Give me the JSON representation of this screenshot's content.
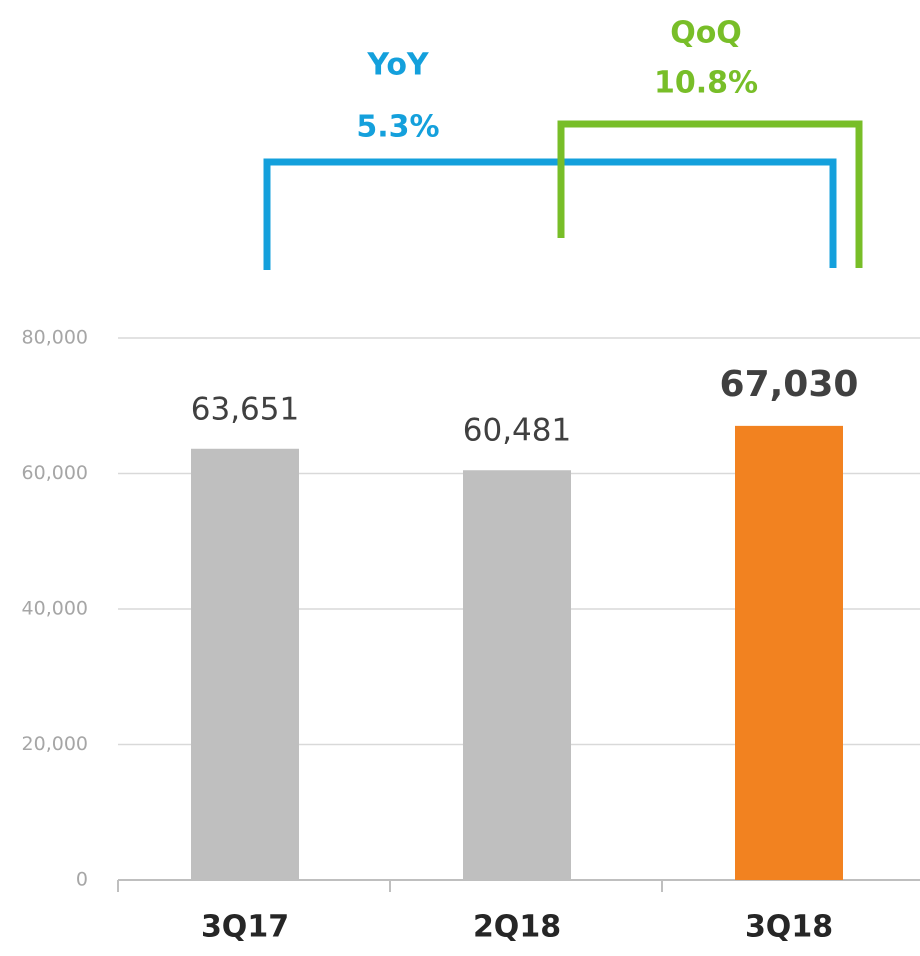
{
  "chart_data": {
    "type": "bar",
    "categories": [
      "3Q17",
      "2Q18",
      "3Q18"
    ],
    "values": [
      63651,
      60481,
      67030
    ],
    "value_labels": [
      "63,651",
      "60,481",
      "67,030"
    ],
    "colors": [
      "#bfbfbf",
      "#bfbfbf",
      "#f28220"
    ],
    "emphasized": [
      false,
      false,
      true
    ],
    "ylim": [
      0,
      80000
    ],
    "yticks": [
      0,
      {
        "value": 20000,
        "label": "20,000"
      },
      {
        "value": 40000,
        "label": "40,000"
      },
      {
        "value": 60000,
        "label": "60,000"
      },
      {
        "value": 80000,
        "label": "80,000"
      }
    ],
    "grid": true,
    "annotations": [
      {
        "title": "YoY",
        "text": "5.3%",
        "color": "#14a0dc"
      },
      {
        "title": "QoQ",
        "text": "10.8%",
        "color": "#78be28"
      }
    ]
  }
}
